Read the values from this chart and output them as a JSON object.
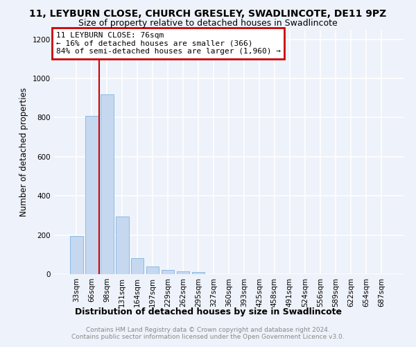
{
  "title": "11, LEYBURN CLOSE, CHURCH GRESLEY, SWADLINCOTE, DE11 9PZ",
  "subtitle": "Size of property relative to detached houses in Swadlincote",
  "xlabel": "Distribution of detached houses by size in Swadlincote",
  "ylabel": "Number of detached properties",
  "categories": [
    "33sqm",
    "66sqm",
    "98sqm",
    "131sqm",
    "164sqm",
    "197sqm",
    "229sqm",
    "262sqm",
    "295sqm",
    "327sqm",
    "360sqm",
    "393sqm",
    "425sqm",
    "458sqm",
    "491sqm",
    "524sqm",
    "556sqm",
    "589sqm",
    "622sqm",
    "654sqm",
    "687sqm"
  ],
  "values": [
    195,
    810,
    920,
    295,
    82,
    38,
    22,
    13,
    10,
    0,
    0,
    0,
    0,
    0,
    0,
    0,
    0,
    0,
    0,
    0,
    0
  ],
  "bar_color": "#c5d8f0",
  "bar_edge_color": "#7fb3e0",
  "vline_x": 1.5,
  "vline_color": "#cc0000",
  "annotation_line1": "11 LEYBURN CLOSE: 76sqm",
  "annotation_line2": "← 16% of detached houses are smaller (366)",
  "annotation_line3": "84% of semi-detached houses are larger (1,960) →",
  "annotation_box_color": "#ffffff",
  "annotation_box_edge_color": "#cc0000",
  "ylim": [
    0,
    1250
  ],
  "yticks": [
    0,
    200,
    400,
    600,
    800,
    1000,
    1200
  ],
  "footer_line1": "Contains HM Land Registry data © Crown copyright and database right 2024.",
  "footer_line2": "Contains public sector information licensed under the Open Government Licence v3.0.",
  "background_color": "#eef2fa",
  "grid_color": "#ffffff",
  "title_fontsize": 10,
  "subtitle_fontsize": 9,
  "tick_fontsize": 7.5,
  "ylabel_fontsize": 8.5,
  "xlabel_fontsize": 9,
  "footer_fontsize": 6.5,
  "annotation_fontsize": 8
}
